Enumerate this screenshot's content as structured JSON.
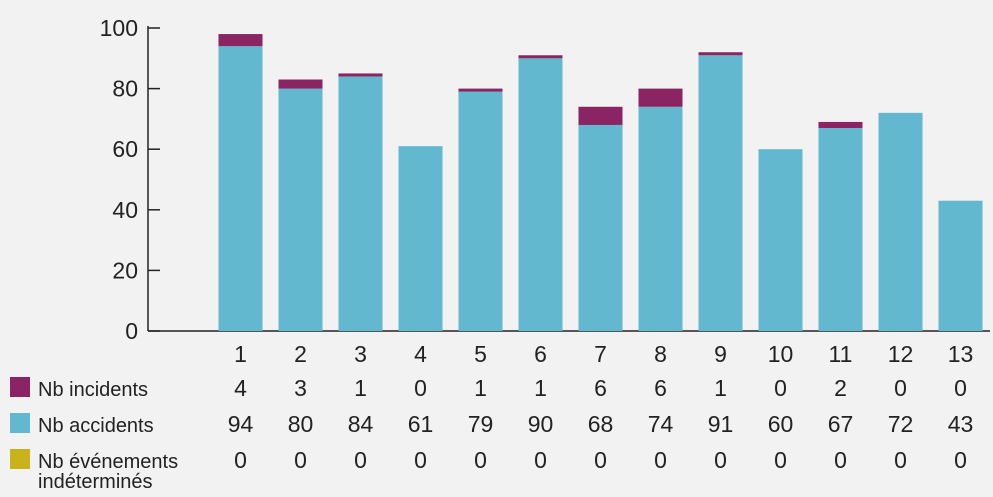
{
  "chart_data": {
    "type": "bar",
    "stacked": true,
    "categories": [
      "1",
      "2",
      "3",
      "4",
      "5",
      "6",
      "7",
      "8",
      "9",
      "10",
      "11",
      "12",
      "13"
    ],
    "series": [
      {
        "name": "Nb événements indéterminés",
        "color": "#c9b21a",
        "values": [
          0,
          0,
          0,
          0,
          0,
          0,
          0,
          0,
          0,
          0,
          0,
          0,
          0
        ]
      },
      {
        "name": "Nb accidents",
        "color": "#62b8cf",
        "values": [
          94,
          80,
          84,
          61,
          79,
          90,
          68,
          74,
          91,
          60,
          67,
          72,
          43
        ]
      },
      {
        "name": "Nb incidents",
        "color": "#8b2463",
        "values": [
          4,
          3,
          1,
          0,
          1,
          1,
          6,
          6,
          1,
          0,
          2,
          0,
          0
        ]
      }
    ],
    "table_rows": [
      {
        "label": "Nb incidents",
        "color": "#8b2463",
        "values": [
          4,
          3,
          1,
          0,
          1,
          1,
          6,
          6,
          1,
          0,
          2,
          0,
          0
        ]
      },
      {
        "label": "Nb accidents",
        "color": "#62b8cf",
        "values": [
          94,
          80,
          84,
          61,
          79,
          90,
          68,
          74,
          91,
          60,
          67,
          72,
          43
        ]
      },
      {
        "label": "Nb événements\nindéterminés",
        "color": "#c9b21a",
        "values": [
          0,
          0,
          0,
          0,
          0,
          0,
          0,
          0,
          0,
          0,
          0,
          0,
          0
        ]
      }
    ],
    "ylim": [
      0,
      100
    ],
    "yticks": [
      0,
      20,
      40,
      60,
      80,
      100
    ],
    "grid": false,
    "legend": "data table below chart"
  }
}
